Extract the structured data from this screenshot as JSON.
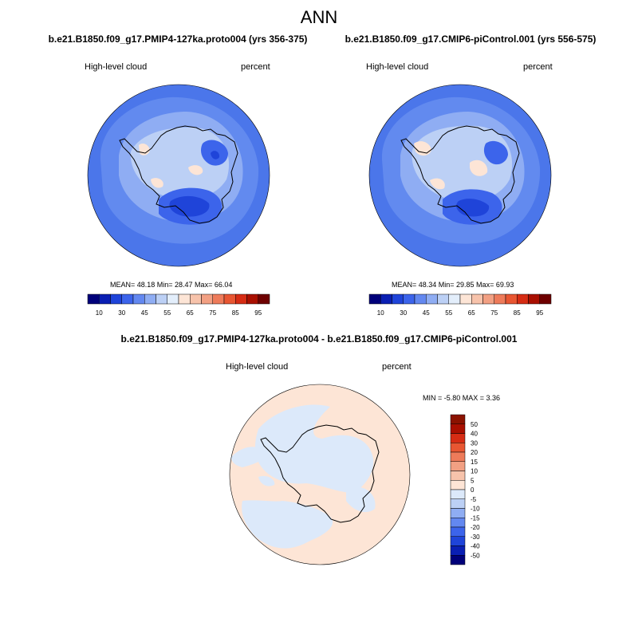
{
  "title": "ANN",
  "panels": [
    {
      "case": "b.e21.B1850.f09_g17.PMIP4-127ka.proto004 (yrs 356-375)",
      "field": "High-level cloud",
      "units": "percent",
      "stats": "MEAN=  48.18  Min=  28.47  Max=  66.04"
    },
    {
      "case": "b.e21.B1850.f09_g17.CMIP6-piControl.001 (yrs 556-575)",
      "field": "High-level cloud",
      "units": "percent",
      "stats": "MEAN=  48.34  Min=  29.85  Max=  69.93"
    }
  ],
  "diff": {
    "case": "b.e21.B1850.f09_g17.PMIP4-127ka.proto004 - b.e21.B1850.f09_g17.CMIP6-piControl.001",
    "field": "High-level cloud",
    "units": "percent",
    "stats": "MIN =  -5.80 MAX =   3.36"
  },
  "colorbar": {
    "colors": [
      "#00007a",
      "#0a1fb3",
      "#1f44d9",
      "#3c64eb",
      "#6388f0",
      "#8fadf3",
      "#bcd0f5",
      "#e3eefb",
      "#fde5d6",
      "#f7c3ab",
      "#f2a083",
      "#ee7b5a",
      "#e85632",
      "#d62c14",
      "#a90f00",
      "#6e0000"
    ],
    "labels": [
      "10",
      "30",
      "45",
      "55",
      "65",
      "75",
      "85",
      "95"
    ]
  },
  "diff_colorbar": {
    "colors": [
      "#00007a",
      "#0a1fb3",
      "#1f44d9",
      "#3c64eb",
      "#6388f0",
      "#8fadf3",
      "#bcd0f5",
      "#dce9fa",
      "#fde5d6",
      "#f7c3ab",
      "#f2a083",
      "#ee7b5a",
      "#e85632",
      "#d62c14",
      "#a90f00",
      "#8b1200"
    ],
    "labels": [
      "50",
      "40",
      "30",
      "20",
      "15",
      "10",
      "5",
      "0",
      "-5",
      "-10",
      "-15",
      "-20",
      "-30",
      "-40",
      "-50"
    ]
  },
  "colors": {
    "base": "#628aef",
    "outer": "#4b76ea",
    "light": "#8fadf3",
    "pale": "#bcd0f5",
    "warm": "#fde5d6",
    "warm2": "#f7c3ab",
    "dark": "#3c64eb",
    "darker": "#1f44d9",
    "diff_neg": "#dce9fa",
    "diff_pos": "#fde5d6"
  }
}
